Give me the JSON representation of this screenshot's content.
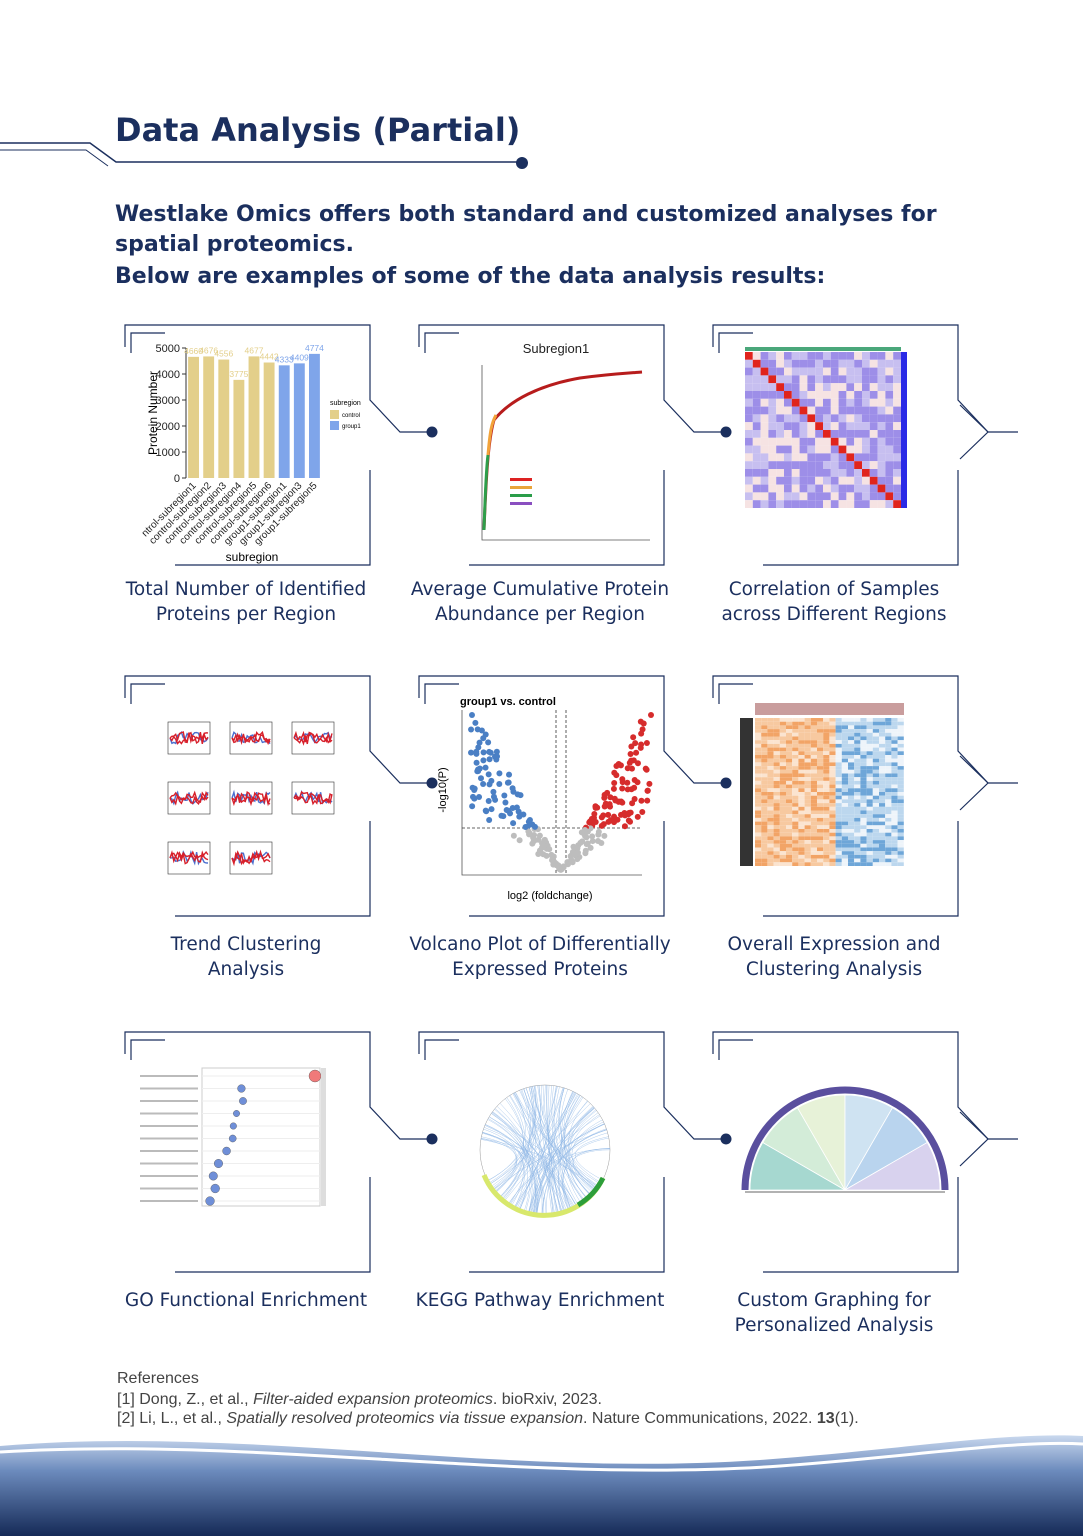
{
  "header": {
    "title": "Data Analysis (Partial)"
  },
  "intro": [
    "Westlake Omics offers both standard and customized analyses for",
    "spatial proteomics.",
    "Below are examples of some of the data analysis results:"
  ],
  "panels": [
    {
      "caption": [
        "Total Number of Identified",
        "Proteins per Region"
      ]
    },
    {
      "caption": [
        "Average Cumulative Protein",
        "Abundance per Region"
      ]
    },
    {
      "caption": [
        "Correlation of Samples",
        "across Different Regions"
      ]
    },
    {
      "caption": [
        "Trend Clustering",
        "Analysis"
      ]
    },
    {
      "caption": [
        "Volcano Plot of Differentially",
        "Expressed Proteins"
      ]
    },
    {
      "caption": [
        "Overall Expression and",
        "Clustering Analysis"
      ]
    },
    {
      "caption": [
        "GO Functional Enrichment"
      ]
    },
    {
      "caption": [
        "KEGG Pathway Enrichment"
      ]
    },
    {
      "caption": [
        "Custom Graphing for",
        "Personalized Analysis"
      ]
    }
  ],
  "chart_data": {
    "type": "bar",
    "ylabel": "Protein Number",
    "xlabel": "subregion",
    "legend_title": "subregion",
    "categories": [
      "ntrol-subregion1",
      "control-subregion2",
      "control-subregion3",
      "control-subregion4",
      "control-subregion5",
      "control-subregion6",
      "group1-subregion1",
      "group1-subregion3",
      "group1-subregion5"
    ],
    "series": [
      {
        "name": "control",
        "color": "#e3cf8a",
        "values": [
          4660,
          4676,
          4556,
          3775,
          4677,
          4442,
          null,
          null,
          null
        ]
      },
      {
        "name": "group1",
        "color": "#7fa5ea",
        "values": [
          null,
          null,
          null,
          null,
          null,
          null,
          4333,
          4409,
          4774
        ]
      }
    ],
    "ylim": [
      0,
      5000
    ],
    "yticks": [
      0,
      1000,
      2000,
      3000,
      4000,
      5000
    ]
  },
  "curve_chart": {
    "title": "Subregion1"
  },
  "volcano_chart": {
    "title": "group1 vs. control",
    "xlabel": "log2 (foldchange)",
    "ylabel": "-log10(P)"
  },
  "references": {
    "heading": "References",
    "items": [
      {
        "authors": "[1] Dong, Z., et al., ",
        "title": "Filter-aided expansion proteomics",
        "source": ". bioRxiv, 2023."
      },
      {
        "authors": "[2] Li, L., et al., ",
        "title": "Spatially resolved proteomics via tissue expansion",
        "source": ". Nature Communications, 2022. ",
        "volume": "13",
        "issue": "(1)."
      }
    ]
  }
}
